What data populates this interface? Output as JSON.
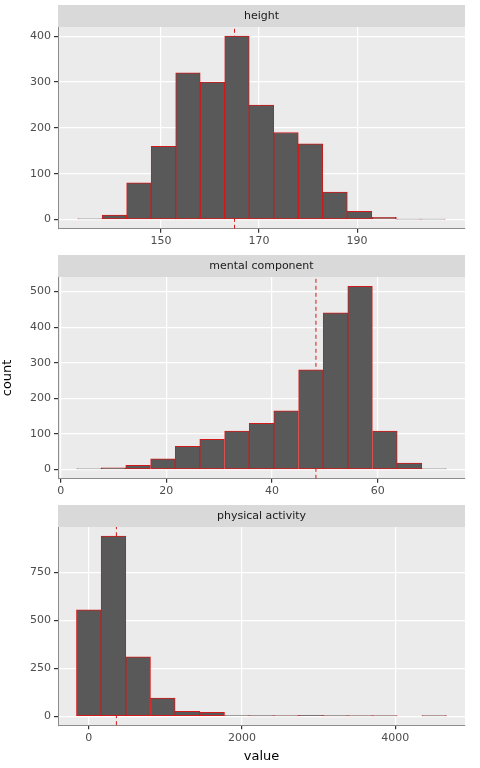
{
  "chart_data": [
    {
      "type": "histogram",
      "title": "height",
      "bins": [
        133,
        138,
        143,
        148,
        153,
        158,
        163,
        168,
        173,
        178,
        183,
        188,
        193,
        198,
        203,
        208
      ],
      "values": [
        2,
        10,
        80,
        160,
        320,
        300,
        400,
        250,
        190,
        165,
        60,
        18,
        5,
        1,
        1
      ],
      "vline": 165,
      "color": "#595959",
      "xlim": [
        129,
        212
      ],
      "xticks": [
        150,
        170,
        190
      ],
      "ylim": [
        -20,
        420
      ],
      "yticks": [
        0,
        100,
        200,
        300,
        400
      ],
      "grid": true
    },
    {
      "type": "histogram",
      "title": "mental component",
      "bins": [
        3.0,
        7.7,
        12.3,
        17.0,
        21.7,
        26.3,
        31.0,
        35.7,
        40.3,
        45.0,
        49.7,
        54.3,
        59.0,
        63.7,
        68.3,
        73.0
      ],
      "values": [
        2,
        5,
        12,
        30,
        65,
        85,
        108,
        130,
        165,
        280,
        440,
        515,
        108,
        18,
        2
      ],
      "vline": 48.3,
      "color": "#595959",
      "xlim": [
        -0.5,
        76.5
      ],
      "xticks": [
        0,
        20,
        40,
        60
      ],
      "ylim": [
        -26,
        541
      ],
      "yticks": [
        0,
        100,
        200,
        300,
        400,
        500
      ],
      "y_label": "count",
      "grid": true
    },
    {
      "type": "histogram",
      "title": "physical activity",
      "bins": [
        -161,
        161,
        483,
        805,
        1127,
        1449,
        1771,
        2093,
        2415,
        2737,
        3059,
        3381,
        3703,
        4025,
        4347,
        4669
      ],
      "values": [
        555,
        940,
        310,
        95,
        25,
        20,
        3,
        2,
        1,
        5,
        2,
        1,
        1,
        0,
        1
      ],
      "vline": 360,
      "color": "#595959",
      "xlim": [
        -402,
        4910
      ],
      "xticks": [
        0,
        2000,
        4000
      ],
      "ylim": [
        -47,
        987
      ],
      "yticks": [
        0,
        250,
        500,
        750
      ],
      "x_label": "value",
      "grid": true
    }
  ]
}
